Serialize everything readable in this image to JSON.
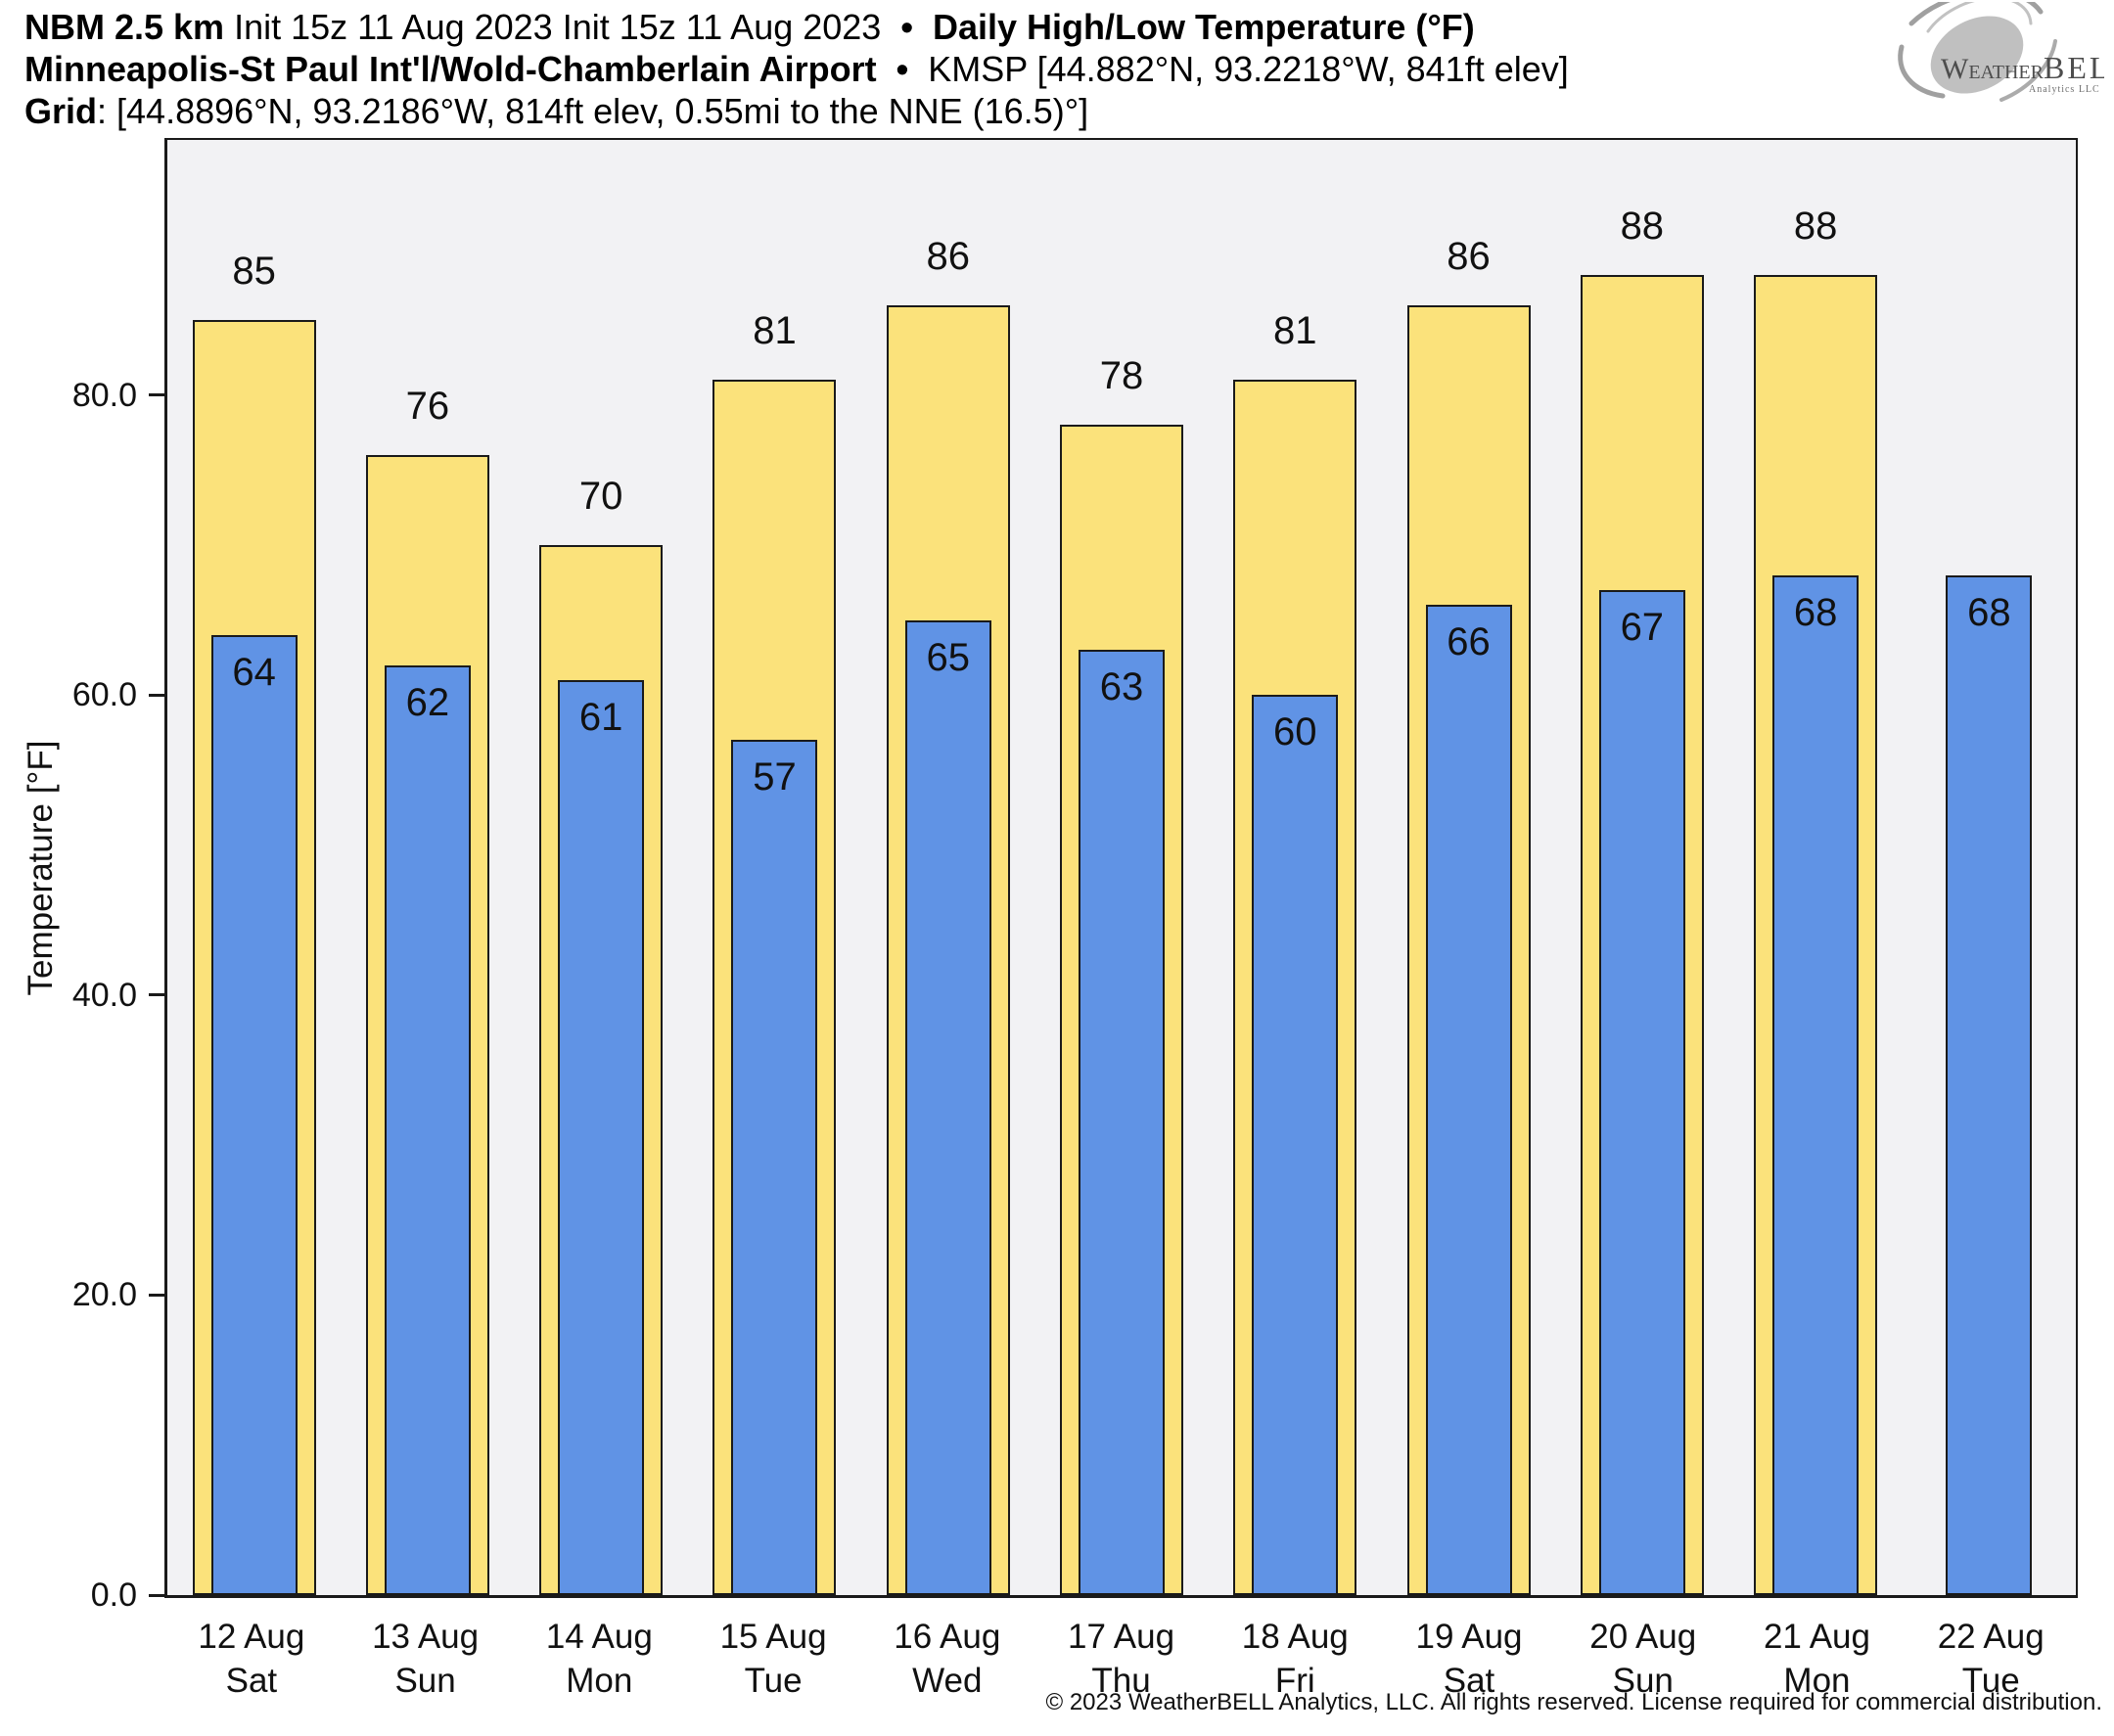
{
  "header": {
    "line1": {
      "model": "NBM 2.5 km",
      "init": "Init 15z 11 Aug 2023",
      "sep": "•",
      "title": "Daily High/Low Temperature (°F)"
    },
    "line2": {
      "station": "Minneapolis-St Paul Int'l/Wold-Chamberlain Airport",
      "sep": "•",
      "meta": "KMSP [44.882°N, 93.2218°W, 841ft elev]"
    },
    "line3": {
      "label": "Grid",
      "meta": ": [44.8896°N, 93.2186°W, 814ft elev, 0.55mi to the NNE (16.5)°]"
    }
  },
  "logo": {
    "part1": "W",
    "part2": "EATHER",
    "part3": "BELL",
    "subtitle": "Analytics LLC"
  },
  "chart_data": {
    "type": "bar",
    "title": "Daily High/Low Temperature (°F)",
    "ylabel": "Temperature [°F]",
    "ylim": [
      0,
      97
    ],
    "yticks": [
      {
        "value": 0,
        "label": "0.0"
      },
      {
        "value": 20,
        "label": "20.0"
      },
      {
        "value": 40,
        "label": "40.0"
      },
      {
        "value": 60,
        "label": "60.0"
      },
      {
        "value": 80,
        "label": "80.0"
      }
    ],
    "categories": [
      {
        "date": "12 Aug",
        "day": "Sat"
      },
      {
        "date": "13 Aug",
        "day": "Sun"
      },
      {
        "date": "14 Aug",
        "day": "Mon"
      },
      {
        "date": "15 Aug",
        "day": "Tue"
      },
      {
        "date": "16 Aug",
        "day": "Wed"
      },
      {
        "date": "17 Aug",
        "day": "Thu"
      },
      {
        "date": "18 Aug",
        "day": "Fri"
      },
      {
        "date": "19 Aug",
        "day": "Sat"
      },
      {
        "date": "20 Aug",
        "day": "Sun"
      },
      {
        "date": "21 Aug",
        "day": "Mon"
      },
      {
        "date": "22 Aug",
        "day": "Tue"
      }
    ],
    "series": [
      {
        "name": "High",
        "color": "#FBE27B",
        "values": [
          85,
          76,
          70,
          81,
          86,
          78,
          81,
          86,
          88,
          88,
          null
        ]
      },
      {
        "name": "Low",
        "color": "#6093E5",
        "values": [
          64,
          62,
          61,
          57,
          65,
          63,
          60,
          66,
          67,
          68,
          68
        ]
      }
    ],
    "legend": "none",
    "grid": false,
    "plot_background": "#F2F2F4",
    "bar_border": "#1A1A1A"
  },
  "footer": {
    "copyright": "© 2023 WeatherBELL Analytics, LLC. All rights reserved. License required for commercial distribution."
  }
}
